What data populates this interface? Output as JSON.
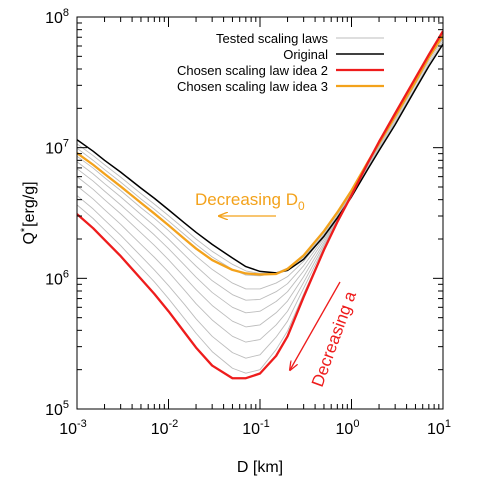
{
  "chart_data": {
    "type": "line",
    "title": "",
    "xlabel": "D [km]",
    "ylabel_base": "Q",
    "ylabel_sup": "*",
    "ylabel_rest": "[erg/g]",
    "xscale": "log",
    "yscale": "log",
    "xlim": [
      0.001,
      10
    ],
    "ylim": [
      100000,
      100000000
    ],
    "grid": false,
    "legend_position": "top-right",
    "x_ticks": [
      {
        "value": 0.001,
        "base": "10",
        "exp": "-3"
      },
      {
        "value": 0.01,
        "base": "10",
        "exp": "-2"
      },
      {
        "value": 0.1,
        "base": "10",
        "exp": "-1"
      },
      {
        "value": 1,
        "base": "10",
        "exp": "0"
      },
      {
        "value": 10,
        "base": "10",
        "exp": "1"
      }
    ],
    "y_ticks": [
      {
        "value": 100000,
        "base": "10",
        "exp": "5"
      },
      {
        "value": 1000000,
        "base": "10",
        "exp": "6"
      },
      {
        "value": 10000000,
        "base": "10",
        "exp": "7"
      },
      {
        "value": 100000000,
        "base": "10",
        "exp": "8"
      }
    ],
    "x": [
      0.001,
      0.0015,
      0.002,
      0.003,
      0.005,
      0.007,
      0.01,
      0.015,
      0.02,
      0.03,
      0.05,
      0.07,
      0.1,
      0.15,
      0.2,
      0.3,
      0.5,
      0.7,
      1,
      1.5,
      2,
      3,
      5,
      7,
      10
    ],
    "series": [
      {
        "name": "Original",
        "color": "#000000",
        "width": 1.5,
        "in_legend": true,
        "values": [
          11500000,
          9400000,
          8000000,
          6500000,
          4900000,
          4100000,
          3350000,
          2650000,
          2250000,
          1820000,
          1430000,
          1230000,
          1130000,
          1100000,
          1150000,
          1400000,
          2100000,
          2900000,
          4200000,
          6800000,
          9500000,
          15000000,
          28000000,
          42000000,
          62000000
        ]
      },
      {
        "name": "Tested scaling laws",
        "color": "#bdbdbd",
        "width": 0.9,
        "in_legend": true,
        "values": [
          10700000,
          8700000,
          7400000,
          5950000,
          4450000,
          3700000,
          3020000,
          2380000,
          2000000,
          1610000,
          1280000,
          1140000,
          1090000,
          1105000,
          1180000,
          1450000,
          2170000,
          3000000,
          4350000,
          7100000,
          9900000,
          15700000,
          29000000,
          44000000,
          65000000
        ]
      },
      {
        "name": "",
        "color": "#bdbdbd",
        "width": 0.9,
        "in_legend": false,
        "values": [
          9900000,
          8000000,
          6800000,
          5450000,
          4050000,
          3380000,
          2750000,
          2160000,
          1820000,
          1460000,
          1170000,
          1060000,
          1045000,
          1100000,
          1200000,
          1490000,
          2240000,
          3100000,
          4500000,
          7300000,
          10200000,
          16300000,
          30500000,
          46000000,
          68000000
        ]
      },
      {
        "name": "Chosen scaling law idea 3",
        "color": "#f3a21b",
        "width": 2.3,
        "in_legend": true,
        "values": [
          9100000,
          7400000,
          6300000,
          5050000,
          3780000,
          3130000,
          2550000,
          2000000,
          1690000,
          1380000,
          1160000,
          1090000,
          1070000,
          1080000,
          1180000,
          1500000,
          2300000,
          3200000,
          4700000,
          7700000,
          10800000,
          17300000,
          32000000,
          49000000,
          72000000
        ]
      },
      {
        "name": "",
        "color": "#bdbdbd",
        "width": 0.9,
        "in_legend": false,
        "values": [
          8600000,
          6980000,
          5900000,
          4700000,
          3470000,
          2880000,
          2320000,
          1780000,
          1480000,
          1170000,
          920000,
          830000,
          830000,
          920000,
          1030000,
          1350000,
          2120000,
          3000000,
          4500000,
          7400000,
          10500000,
          17000000,
          31500000,
          48000000,
          71000000
        ]
      },
      {
        "name": "",
        "color": "#bdbdbd",
        "width": 0.9,
        "in_legend": false,
        "values": [
          7800000,
          6300000,
          5300000,
          4200000,
          3080000,
          2520000,
          2000000,
          1510000,
          1240000,
          960000,
          750000,
          680000,
          690000,
          790000,
          910000,
          1250000,
          2050000,
          2950000,
          4450000,
          7400000,
          10500000,
          17100000,
          31800000,
          48500000,
          72000000
        ]
      },
      {
        "name": "",
        "color": "#bdbdbd",
        "width": 0.9,
        "in_legend": false,
        "values": [
          6900000,
          5550000,
          4650000,
          3650000,
          2650000,
          2150000,
          1690000,
          1260000,
          1020000,
          780000,
          600000,
          545000,
          560000,
          665000,
          790000,
          1140000,
          1970000,
          2900000,
          4400000,
          7400000,
          10600000,
          17300000,
          32200000,
          49000000,
          73000000
        ]
      },
      {
        "name": "",
        "color": "#bdbdbd",
        "width": 0.9,
        "in_legend": false,
        "values": [
          6000000,
          4800000,
          4000000,
          3120000,
          2230000,
          1790000,
          1390000,
          1020000,
          820000,
          620000,
          470000,
          425000,
          440000,
          545000,
          670000,
          1030000,
          1880000,
          2850000,
          4380000,
          7400000,
          10700000,
          17500000,
          32600000,
          49500000,
          74000000
        ]
      },
      {
        "name": "",
        "color": "#bdbdbd",
        "width": 0.9,
        "in_legend": false,
        "values": [
          5100000,
          4050000,
          3350000,
          2590000,
          1820000,
          1450000,
          1120000,
          810000,
          640000,
          480000,
          360000,
          325000,
          340000,
          440000,
          560000,
          930000,
          1800000,
          2800000,
          4360000,
          7450000,
          10800000,
          17700000,
          33000000,
          50000000,
          75000000
        ]
      },
      {
        "name": "",
        "color": "#bdbdbd",
        "width": 0.9,
        "in_legend": false,
        "values": [
          4300000,
          3400000,
          2800000,
          2140000,
          1480000,
          1160000,
          880000,
          630000,
          490000,
          360000,
          270000,
          245000,
          260000,
          355000,
          470000,
          840000,
          1730000,
          2750000,
          4350000,
          7500000,
          10900000,
          17900000,
          33400000,
          50500000,
          76000000
        ]
      },
      {
        "name": "",
        "color": "#bdbdbd",
        "width": 0.9,
        "in_legend": false,
        "values": [
          3650000,
          2870000,
          2350000,
          1780000,
          1210000,
          940000,
          700000,
          490000,
          380000,
          275000,
          205000,
          188000,
          200000,
          285000,
          395000,
          760000,
          1670000,
          2720000,
          4340000,
          7550000,
          11000000,
          18100000,
          33800000,
          51000000,
          77000000
        ]
      },
      {
        "name": "Chosen scaling law idea 2",
        "color": "#ee1c1c",
        "width": 2.3,
        "in_legend": true,
        "values": [
          3100000,
          2420000,
          1970000,
          1480000,
          990000,
          760000,
          560000,
          385000,
          295000,
          215000,
          172000,
          172000,
          187000,
          255000,
          360000,
          720000,
          1650000,
          2700000,
          4330000,
          7600000,
          11100000,
          18300000,
          34200000,
          51500000,
          78000000
        ]
      }
    ],
    "legend_order": [
      "Tested scaling laws",
      "Original",
      "Chosen scaling law idea 2",
      "Chosen scaling law idea 3"
    ],
    "annotations": [
      {
        "id": "decreasing-d0",
        "text_base": "Decreasing D",
        "text_sub": "0",
        "color": "#f3a21b",
        "arrow": "left"
      },
      {
        "id": "decreasing-a",
        "text": "Decreasing a",
        "color": "#ee1c1c",
        "arrow": "down-left"
      }
    ]
  }
}
